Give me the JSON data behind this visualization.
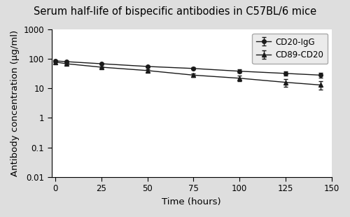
{
  "title": "Serum half-life of bispecific antibodies in C57BL/6 mice",
  "xlabel": "Time (hours)",
  "ylabel": "Antibody concentration (µg/ml)",
  "background_color": "#dedede",
  "plot_bg_color": "#ffffff",
  "cd20_igg": {
    "x": [
      0,
      6,
      25,
      50,
      75,
      100,
      125,
      144
    ],
    "y": [
      85,
      80,
      68,
      55,
      47,
      38,
      32,
      28
    ],
    "yerr": [
      4,
      4,
      4,
      4,
      4,
      5,
      5,
      5
    ],
    "label": "CD20-IgG",
    "color": "#1a1a1a",
    "marker": "o"
  },
  "cd89_cd20": {
    "x": [
      0,
      6,
      25,
      50,
      75,
      100,
      125,
      144
    ],
    "y": [
      78,
      68,
      52,
      40,
      28,
      22,
      16,
      13
    ],
    "yerr": [
      4,
      4,
      4,
      4,
      4,
      5,
      5,
      4
    ],
    "label": "CD89-CD20",
    "color": "#1a1a1a",
    "marker": "^"
  },
  "ylim": [
    0.01,
    1000
  ],
  "xlim": [
    -2,
    150
  ],
  "xticks": [
    0,
    25,
    50,
    75,
    100,
    125,
    150
  ],
  "yticks": [
    0.01,
    0.1,
    1,
    10,
    100,
    1000
  ],
  "ytick_labels": [
    "0.01",
    "0.1",
    "1",
    "10",
    "100",
    "1000"
  ],
  "title_fontsize": 10.5,
  "axis_label_fontsize": 9.5,
  "tick_fontsize": 8.5,
  "legend_fontsize": 8.5
}
